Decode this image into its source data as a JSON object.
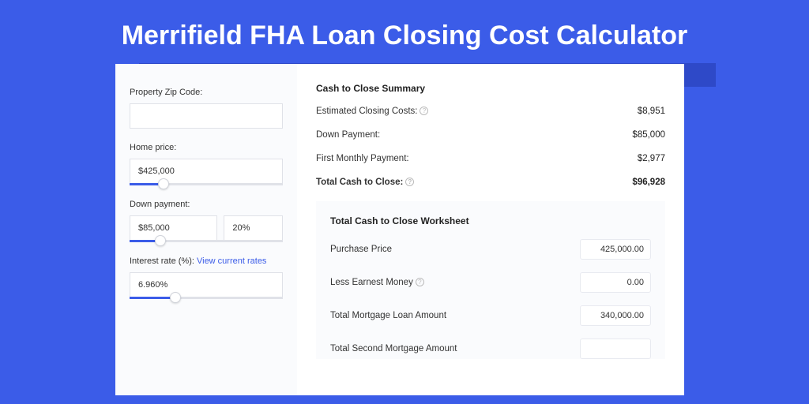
{
  "page": {
    "title": "Merrifield FHA Loan Closing Cost Calculator"
  },
  "inputs": {
    "zipLabel": "Property Zip Code:",
    "zipValue": "",
    "homePriceLabel": "Home price:",
    "homePriceValue": "$425,000",
    "homePriceSliderPct": 22,
    "downPaymentLabel": "Down payment:",
    "downPaymentValue": "$85,000",
    "downPaymentPct": "20%",
    "downPaymentSliderPct": 20,
    "interestLabel": "Interest rate (%): ",
    "interestLink": "View current rates",
    "interestValue": "6.960%",
    "interestSliderPct": 30
  },
  "summary": {
    "title": "Cash to Close Summary",
    "rows": [
      {
        "label": "Estimated Closing Costs:",
        "help": true,
        "value": "$8,951",
        "bold": false
      },
      {
        "label": "Down Payment:",
        "help": false,
        "value": "$85,000",
        "bold": false
      },
      {
        "label": "First Monthly Payment:",
        "help": false,
        "value": "$2,977",
        "bold": false
      },
      {
        "label": "Total Cash to Close:",
        "help": true,
        "value": "$96,928",
        "bold": true
      }
    ]
  },
  "worksheet": {
    "title": "Total Cash to Close Worksheet",
    "rows": [
      {
        "label": "Purchase Price",
        "help": false,
        "value": "425,000.00"
      },
      {
        "label": "Less Earnest Money",
        "help": true,
        "value": "0.00"
      },
      {
        "label": "Total Mortgage Loan Amount",
        "help": false,
        "value": "340,000.00"
      },
      {
        "label": "Total Second Mortgage Amount",
        "help": false,
        "value": ""
      }
    ]
  },
  "colors": {
    "pageBg": "#3b5ce8",
    "accent": "#3b5ce8",
    "panelBg": "#fafbfd",
    "border": "#e0e2e8"
  }
}
